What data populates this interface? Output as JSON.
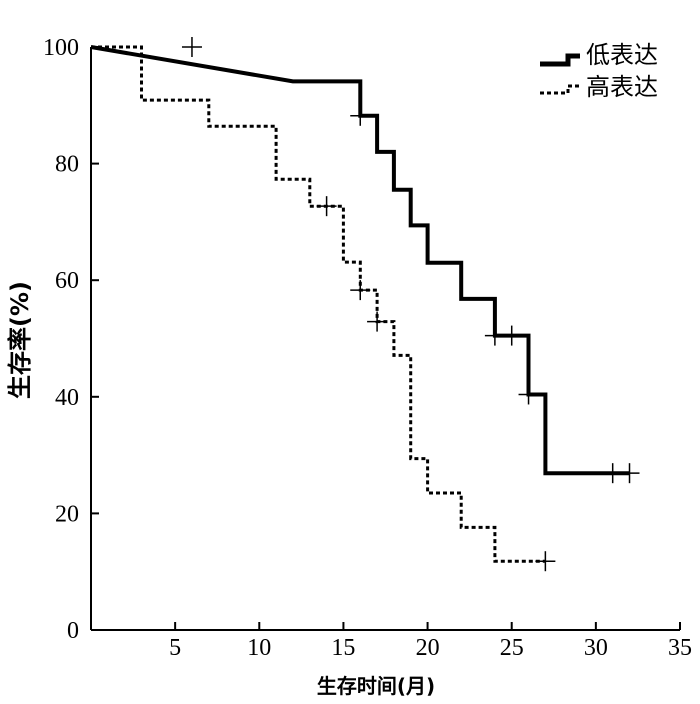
{
  "chart_data": {
    "type": "line",
    "xlabel": "生存时间(月)",
    "ylabel": "生存率(%)",
    "xlim": [
      0,
      35
    ],
    "ylim": [
      0,
      100
    ],
    "xticks": [
      5,
      10,
      15,
      20,
      25,
      30,
      35
    ],
    "yticks": [
      0,
      20,
      40,
      60,
      80,
      100
    ],
    "grid": false,
    "legend_position": "top-right",
    "series": [
      {
        "name": "低表达",
        "line_style": "solid",
        "steps": [
          [
            0,
            100
          ],
          [
            12,
            94.1
          ],
          [
            16,
            94.1
          ],
          [
            16,
            88.2
          ],
          [
            17,
            88.2
          ],
          [
            17,
            82.0
          ],
          [
            18,
            82.0
          ],
          [
            18,
            75.5
          ],
          [
            19,
            75.5
          ],
          [
            19,
            69.4
          ],
          [
            20,
            69.4
          ],
          [
            20,
            63.0
          ],
          [
            22,
            63.0
          ],
          [
            22,
            56.8
          ],
          [
            24,
            56.8
          ],
          [
            24,
            50.5
          ],
          [
            26,
            50.5
          ],
          [
            26,
            40.4
          ],
          [
            27,
            40.4
          ],
          [
            27,
            26.9
          ],
          [
            32,
            26.9
          ]
        ],
        "censored": [
          [
            6,
            100
          ],
          [
            16,
            88.2
          ],
          [
            24,
            50.5
          ],
          [
            25,
            50.5
          ],
          [
            26,
            40.4
          ],
          [
            31,
            26.9
          ],
          [
            32,
            26.9
          ]
        ]
      },
      {
        "name": "高表达",
        "line_style": "dashed",
        "steps": [
          [
            0,
            100
          ],
          [
            3,
            100
          ],
          [
            3,
            90.9
          ],
          [
            7,
            90.9
          ],
          [
            7,
            86.4
          ],
          [
            11,
            86.4
          ],
          [
            11,
            77.3
          ],
          [
            13,
            77.3
          ],
          [
            13,
            72.7
          ],
          [
            15,
            72.7
          ],
          [
            15,
            63.1
          ],
          [
            16,
            63.1
          ],
          [
            16,
            58.3
          ],
          [
            17,
            58.3
          ],
          [
            17,
            52.9
          ],
          [
            18,
            52.9
          ],
          [
            18,
            47.1
          ],
          [
            19,
            47.1
          ],
          [
            19,
            29.4
          ],
          [
            20,
            29.4
          ],
          [
            20,
            23.5
          ],
          [
            22,
            23.5
          ],
          [
            22,
            17.6
          ],
          [
            24,
            17.6
          ],
          [
            24,
            11.8
          ],
          [
            27,
            11.8
          ]
        ],
        "censored": [
          [
            14,
            72.7
          ],
          [
            16,
            58.3
          ],
          [
            17,
            52.9
          ],
          [
            27,
            11.8
          ]
        ]
      }
    ]
  }
}
